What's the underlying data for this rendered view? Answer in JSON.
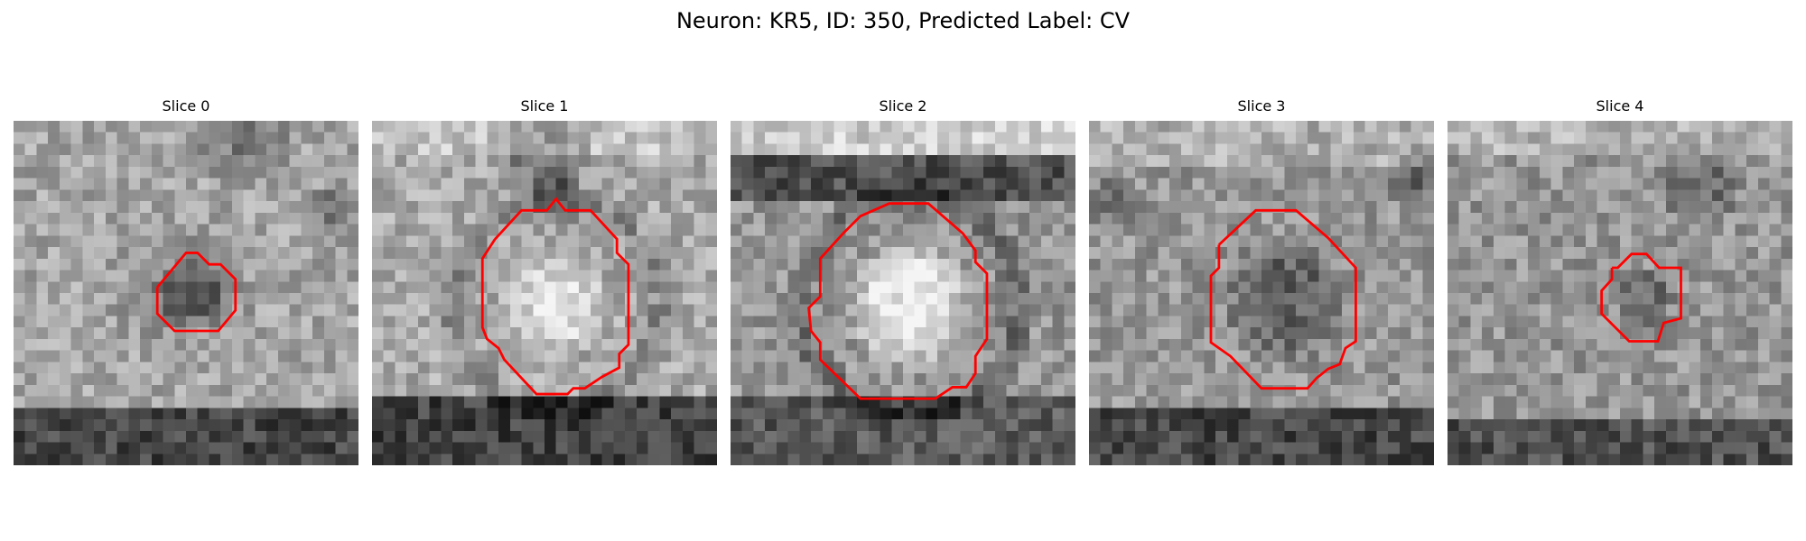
{
  "title": "Neuron: KR5, ID: 350, Predicted Label: CV",
  "colors": {
    "contour": "#ff0000"
  },
  "panels": [
    {
      "title": "Slice 0"
    },
    {
      "title": "Slice 1"
    },
    {
      "title": "Slice 2"
    },
    {
      "title": "Slice 3"
    },
    {
      "title": "Slice 4"
    }
  ]
}
